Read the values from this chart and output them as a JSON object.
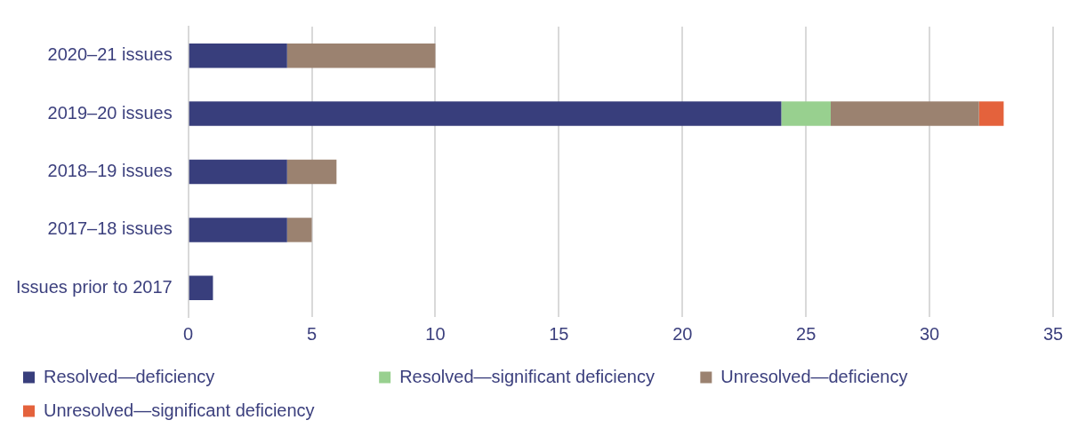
{
  "chart_data": {
    "type": "bar",
    "orientation": "horizontal",
    "stacked": true,
    "categories": [
      "2020–21 issues",
      "2019–20 issues",
      "2018–19 issues",
      "2017–18 issues",
      "Issues prior to 2017"
    ],
    "series": [
      {
        "name": "Resolved—deficiency",
        "color": "#383e7c",
        "values": [
          4,
          24,
          4,
          4,
          1
        ]
      },
      {
        "name": "Resolved—significant deficiency",
        "color": "#98d08f",
        "values": [
          0,
          2,
          0,
          0,
          0
        ]
      },
      {
        "name": "Unresolved—deficiency",
        "color": "#9b8270",
        "values": [
          6,
          6,
          2,
          1,
          0
        ]
      },
      {
        "name": "Unresolved—significant deficiency",
        "color": "#e4623c",
        "values": [
          0,
          1,
          0,
          0,
          0
        ]
      }
    ],
    "xlim": [
      0,
      35
    ],
    "xticks": [
      0,
      5,
      10,
      15,
      20,
      25,
      30,
      35
    ],
    "grid": "x",
    "legend": "bottom"
  }
}
